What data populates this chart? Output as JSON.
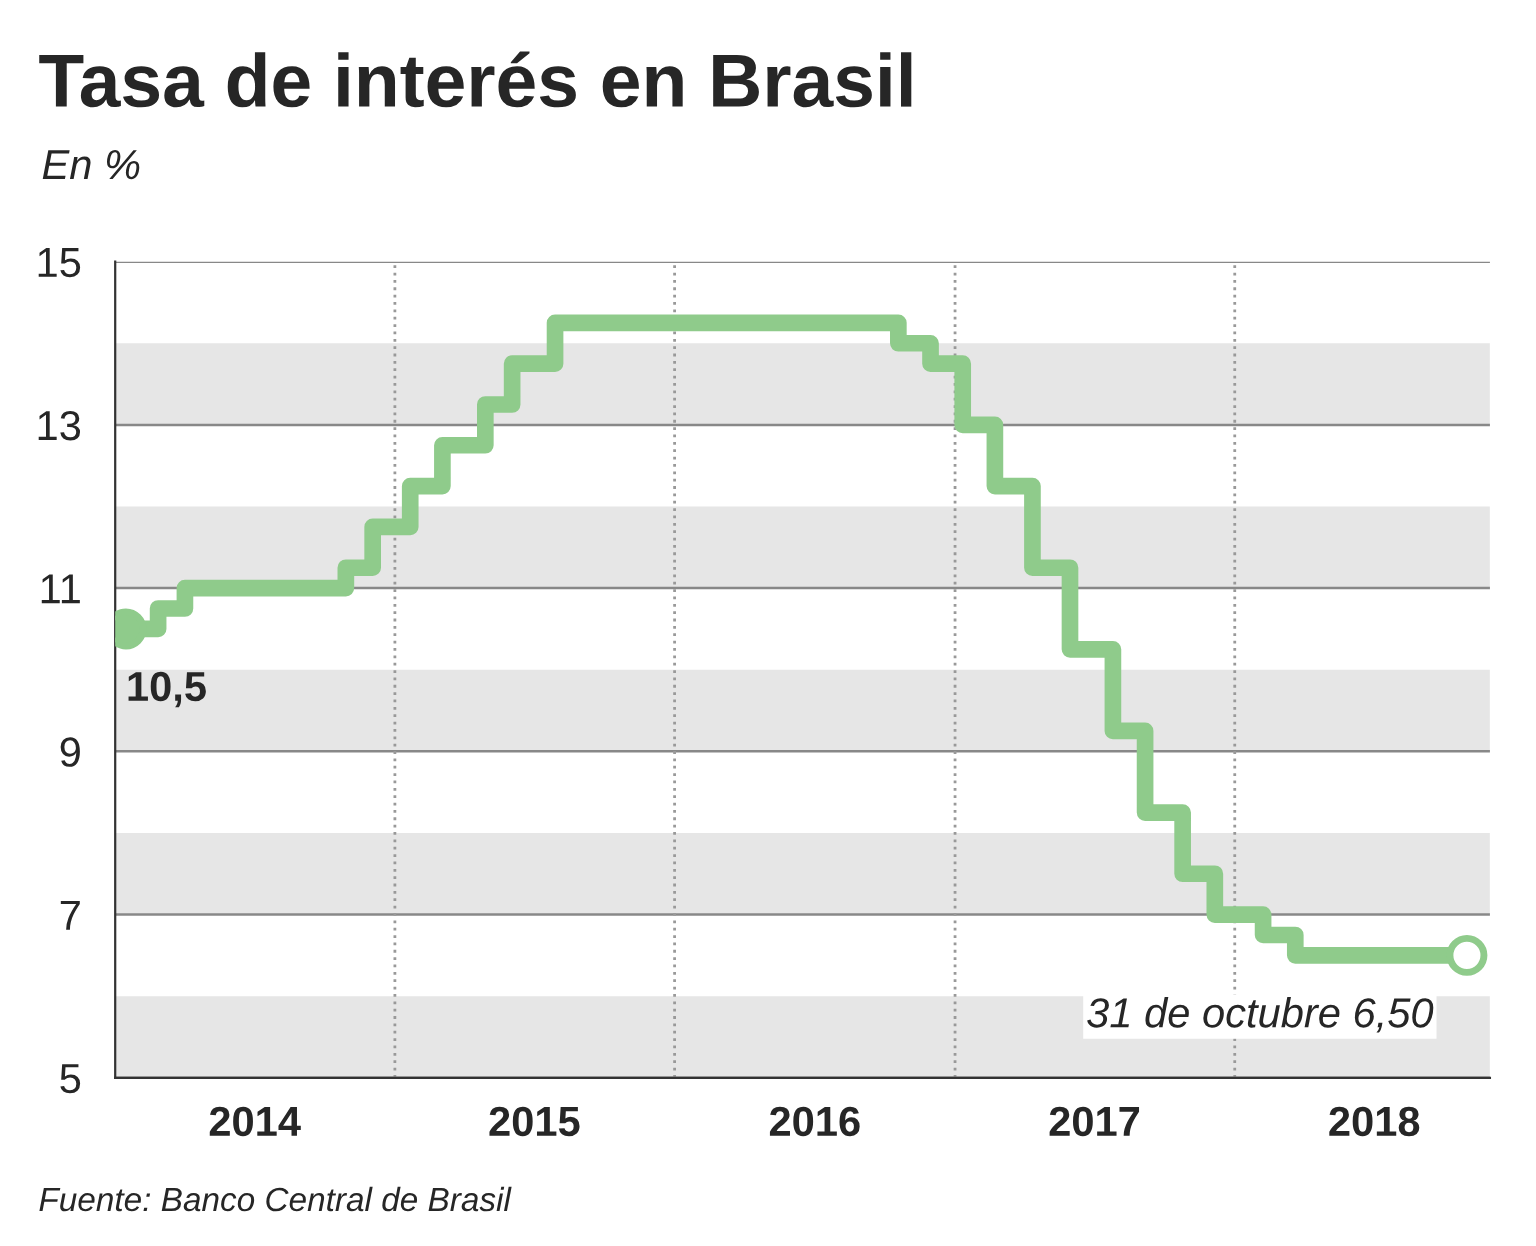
{
  "chart_data": {
    "type": "step",
    "title": "Tasa de interés en Brasil",
    "ylabel": "En %",
    "series": [
      {
        "color": "#8fcb8b",
        "x": [
          "2014-01-15",
          "2014-02-26",
          "2014-04-02",
          "2014-10-29",
          "2014-12-03",
          "2015-01-21",
          "2015-03-04",
          "2015-04-29",
          "2015-06-03",
          "2015-07-29",
          "2016-10-19",
          "2016-11-30",
          "2017-01-11",
          "2017-02-22",
          "2017-04-12",
          "2017-05-31",
          "2017-07-26",
          "2017-09-06",
          "2017-10-25",
          "2017-12-06",
          "2018-02-07",
          "2018-03-21",
          "2018-10-31"
        ],
        "values": [
          10.5,
          10.75,
          11.0,
          11.25,
          11.75,
          12.25,
          12.75,
          13.25,
          13.75,
          14.25,
          14.0,
          13.75,
          13.0,
          12.25,
          11.25,
          10.25,
          9.25,
          8.25,
          7.5,
          7.0,
          6.75,
          6.5,
          6.5
        ]
      },
      {
        "type": "scatter",
        "color": "#8fcb8b",
        "marker": "circle",
        "x": [
          "2014-01-15",
          "2018-10-31"
        ],
        "values": [
          10.5,
          6.5
        ]
      }
    ],
    "xlim": [
      "2014-01-01",
      "2018-11-30"
    ],
    "xticks": [
      {
        "value": "2014-07-02",
        "label": "2014"
      },
      {
        "value": "2015-07-02",
        "label": "2015"
      },
      {
        "value": "2016-07-02",
        "label": "2016"
      },
      {
        "value": "2017-07-02",
        "label": "2017"
      },
      {
        "value": "2018-07-02",
        "label": "2018"
      }
    ],
    "ylim": [
      5,
      15
    ],
    "yticks": [
      5,
      7,
      9,
      11,
      13,
      15
    ],
    "grid": "y",
    "bands": [
      {
        "axis": "y",
        "from": 5,
        "to": 6,
        "color": "#e6e6e6"
      },
      {
        "axis": "y",
        "from": 7,
        "to": 8,
        "color": "#e6e6e6"
      },
      {
        "axis": "y",
        "from": 9,
        "to": 10,
        "color": "#e6e6e6"
      },
      {
        "axis": "y",
        "from": 11,
        "to": 12,
        "color": "#e6e6e6"
      },
      {
        "axis": "y",
        "from": 13,
        "to": 14,
        "color": "#e6e6e6"
      }
    ],
    "ref_lines": [
      {
        "axis": "x",
        "value": "2015-01-01",
        "color": "#999999",
        "line_style": "dotted"
      },
      {
        "axis": "x",
        "value": "2016-01-01",
        "color": "#999999",
        "line_style": "dotted"
      },
      {
        "axis": "x",
        "value": "2017-01-01",
        "color": "#999999",
        "line_style": "dotted"
      },
      {
        "axis": "x",
        "value": "2018-01-01",
        "color": "#999999",
        "line_style": "dotted"
      }
    ],
    "annotations": [
      {
        "text": "10,5",
        "x": "2014-01-15",
        "y": 10.5
      },
      {
        "text": "31 de octubre 6,50",
        "x": "2018-10-31",
        "y": 6.5
      },
      "Fuente: Banco Central de Brasil"
    ]
  }
}
